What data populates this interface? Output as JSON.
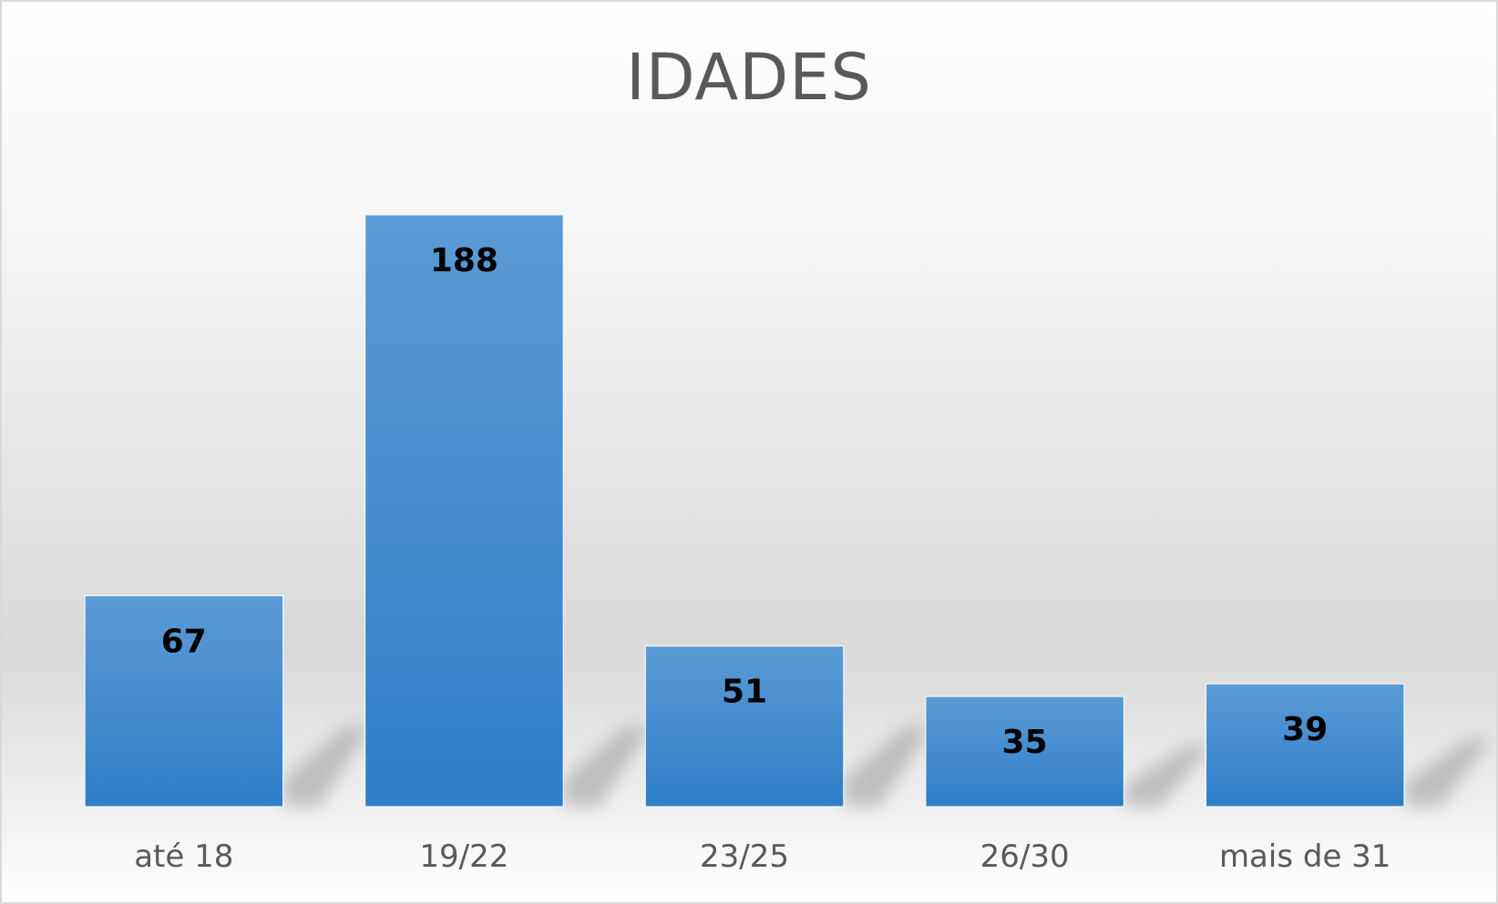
{
  "chart_data": {
    "type": "bar",
    "title": "IDADES",
    "xlabel": "",
    "ylabel": "",
    "categories": [
      "até 18",
      "19/22",
      "23/25",
      "26/30",
      "mais de 31"
    ],
    "values": [
      67,
      188,
      51,
      35,
      39
    ],
    "ylim": [
      0,
      200
    ],
    "grid": false,
    "legend": "none",
    "data_labels": true,
    "colors": {
      "bar_top": "#5b9bd5",
      "bar_bottom": "#2f7dc8",
      "title": "#595959",
      "tick": "#595959",
      "data_label": "#000000"
    }
  }
}
